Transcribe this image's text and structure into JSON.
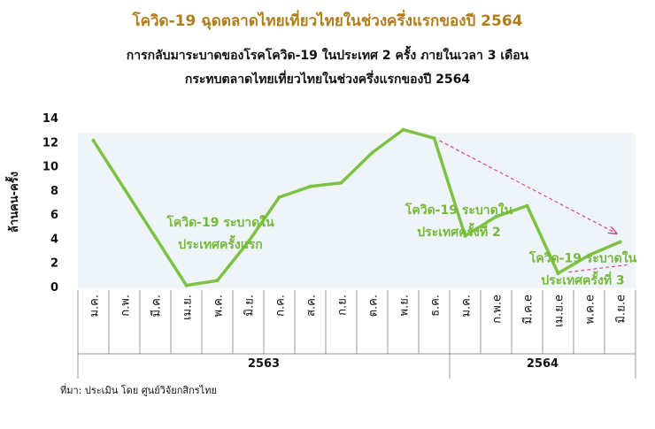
{
  "title": "โควิด-19 ฉุดตลาดไทยเที่ยวไทยในช่วงครึ่งแรกของปี 2564",
  "subtitle_line1": "การกลับมาระบาดของโรคโควิด-19 ในประเทศ 2 ครั้ง ภายในเวลา 3 เดือน",
  "subtitle_line2": "กระทบตลาดไทยเที่ยวไทยในช่วงครึ่งแรกของปี 2564",
  "source": "ที่มา: ประเมิน โดย ศูนย์วิจัยกสิกรไทย",
  "colors": {
    "line": "#7dc242",
    "annotation": "#77b83a",
    "trend": "#d9488f",
    "axis": "#999999"
  },
  "chart_data": {
    "type": "line",
    "ylabel": "ล้านคน-ครั้ง",
    "ylim": [
      0,
      14
    ],
    "yticks": [
      0,
      2,
      4,
      6,
      8,
      10,
      12,
      14
    ],
    "categories": [
      "ม.ค.",
      "ก.พ.",
      "มี.ค.",
      "เม.ย.",
      "พ.ค.",
      "มิ.ย.",
      "ก.ค.",
      "ส.ค.",
      "ก.ย.",
      "ต.ค.",
      "พ.ย.",
      "ธ.ค.",
      "ม.ค.",
      "ก.พ.e",
      "มี.ค.e",
      "เม.ย.e",
      "พ.ค.e",
      "มิ.ย.e"
    ],
    "years": [
      {
        "label": "2563",
        "start": 0,
        "end": 11
      },
      {
        "label": "2564",
        "start": 12,
        "end": 17
      }
    ],
    "series": [
      {
        "values": [
          12.1,
          8.1,
          4.1,
          0.1,
          0.5,
          3.7,
          7.4,
          8.3,
          8.6,
          11.1,
          13.0,
          12.3,
          4.2,
          5.8,
          6.7,
          1.1,
          2.6,
          3.7
        ]
      }
    ],
    "annotations": [
      {
        "line1": "โควิด-19 ระบาดใน",
        "line2": "ประเทศครั้งแรก",
        "x": 4.1,
        "y": 5.0
      },
      {
        "line1": "โควิด-19 ระบาดใน",
        "line2": "ประเทศครั้งที่ 2",
        "x": 11.8,
        "y": 6.0
      },
      {
        "line1": "โควิด-19 ระบาดใน",
        "line2": "ประเทศครั้งที่ 3",
        "x": 15.8,
        "y": 2.0
      }
    ]
  }
}
